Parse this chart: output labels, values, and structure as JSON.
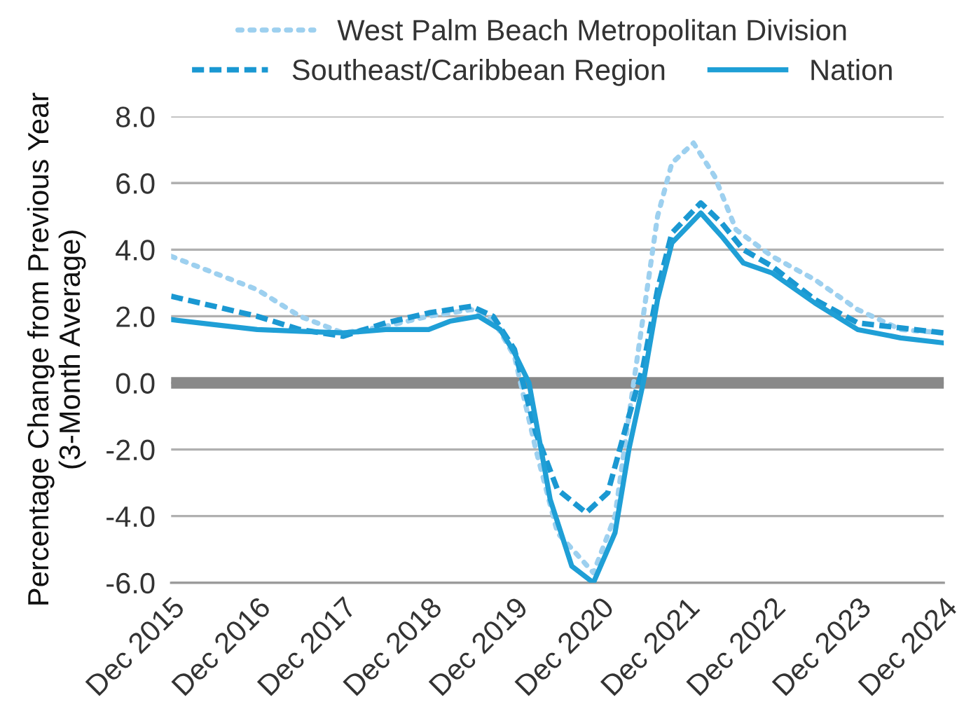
{
  "chart_data": {
    "type": "line",
    "ylabel": "Percentage Change from Previous Year\n(3-Month Average)",
    "xlim": [
      "2015-12",
      "2024-12"
    ],
    "xticks": [
      {
        "value": "2015-12",
        "label": "Dec 2015"
      },
      {
        "value": "2016-12",
        "label": "Dec 2016"
      },
      {
        "value": "2017-12",
        "label": "Dec 2017"
      },
      {
        "value": "2018-12",
        "label": "Dec 2018"
      },
      {
        "value": "2019-12",
        "label": "Dec 2019"
      },
      {
        "value": "2020-12",
        "label": "Dec 2020"
      },
      {
        "value": "2021-12",
        "label": "Dec 2021"
      },
      {
        "value": "2022-12",
        "label": "Dec 2022"
      },
      {
        "value": "2023-12",
        "label": "Dec 2023"
      },
      {
        "value": "2024-12",
        "label": "Dec 2024"
      }
    ],
    "ylim": [
      -6,
      8
    ],
    "yticks": [
      {
        "value": -6,
        "label": "-6.0"
      },
      {
        "value": -4,
        "label": "-4.0"
      },
      {
        "value": -2,
        "label": "-2.0"
      },
      {
        "value": 0,
        "label": "0.0"
      },
      {
        "value": 2,
        "label": "2.0"
      },
      {
        "value": 4,
        "label": "4.0"
      },
      {
        "value": 6,
        "label": "6.0"
      },
      {
        "value": 8,
        "label": "8.0"
      }
    ],
    "grid": "y",
    "legend": "top",
    "ref_lines": [
      {
        "axis": "y",
        "value": 0,
        "color": "#898989"
      }
    ],
    "series": [
      {
        "name": "West Palm Beach Metropolitan Division",
        "color": "#9dd0ef",
        "line_style": "dotted",
        "x": [
          "2015-12",
          "2016-06",
          "2016-12",
          "2017-06",
          "2017-12",
          "2018-06",
          "2018-12",
          "2019-06",
          "2019-09",
          "2019-12",
          "2020-03",
          "2020-06",
          "2020-11",
          "2021-02",
          "2021-04",
          "2021-06",
          "2021-08",
          "2021-10",
          "2022-01",
          "2022-04",
          "2022-07",
          "2022-12",
          "2023-06",
          "2023-12",
          "2024-06",
          "2024-12"
        ],
        "values": [
          3.8,
          3.3,
          2.8,
          2.0,
          1.5,
          1.7,
          2.0,
          2.2,
          1.9,
          0.8,
          -2.0,
          -4.5,
          -5.7,
          -4.0,
          -1.0,
          2.0,
          5.0,
          6.6,
          7.2,
          6.2,
          4.6,
          3.8,
          3.1,
          2.2,
          1.6,
          1.5
        ]
      },
      {
        "name": "Southeast/Caribbean Region",
        "color": "#1a98d2",
        "line_style": "dashed",
        "x": [
          "2015-12",
          "2016-12",
          "2017-06",
          "2017-12",
          "2018-06",
          "2018-12",
          "2019-06",
          "2019-09",
          "2019-12",
          "2020-03",
          "2020-06",
          "2020-10",
          "2021-01",
          "2021-04",
          "2021-06",
          "2021-08",
          "2021-10",
          "2022-02",
          "2022-05",
          "2022-08",
          "2022-12",
          "2023-06",
          "2023-12",
          "2024-12"
        ],
        "values": [
          2.6,
          2.0,
          1.6,
          1.4,
          1.8,
          2.1,
          2.3,
          2.0,
          1.0,
          -1.5,
          -3.2,
          -3.9,
          -3.3,
          -1.0,
          0.5,
          2.8,
          4.5,
          5.4,
          4.8,
          4.0,
          3.5,
          2.5,
          1.8,
          1.5
        ]
      },
      {
        "name": "Nation",
        "color": "#1f9fd6",
        "line_style": "solid",
        "x": [
          "2015-12",
          "2016-06",
          "2016-12",
          "2017-06",
          "2017-12",
          "2018-06",
          "2018-12",
          "2019-03",
          "2019-07",
          "2019-10",
          "2019-12",
          "2020-02",
          "2020-05",
          "2020-08",
          "2020-11",
          "2021-02",
          "2021-04",
          "2021-06",
          "2021-08",
          "2021-10",
          "2022-02",
          "2022-05",
          "2022-08",
          "2022-12",
          "2023-06",
          "2023-12",
          "2024-06",
          "2024-12"
        ],
        "values": [
          1.9,
          1.75,
          1.6,
          1.55,
          1.5,
          1.6,
          1.6,
          1.85,
          2.0,
          1.6,
          0.9,
          0.0,
          -3.5,
          -5.5,
          -6.0,
          -4.5,
          -2.0,
          0.0,
          2.5,
          4.2,
          5.1,
          4.4,
          3.6,
          3.3,
          2.4,
          1.6,
          1.35,
          1.2
        ]
      }
    ]
  }
}
